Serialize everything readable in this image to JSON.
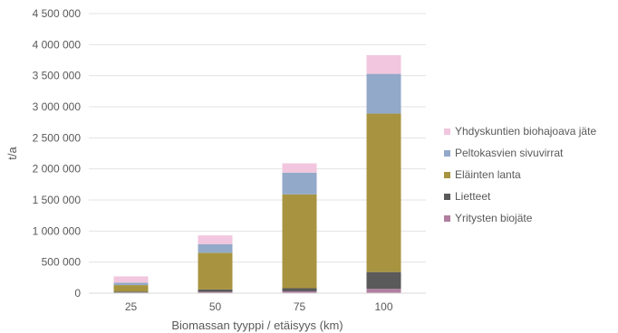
{
  "chart_data": {
    "type": "bar",
    "stacked": true,
    "title": "",
    "xlabel": "Biomassan tyyppi / etäisyys (km)",
    "ylabel": "t/a",
    "ylim": [
      0,
      4500000
    ],
    "yticks": [
      0,
      500000,
      1000000,
      1500000,
      2000000,
      2500000,
      3000000,
      3500000,
      4000000,
      4500000
    ],
    "ytick_labels": [
      "0",
      "500 000",
      "1 000 000",
      "1 500 000",
      "2 000 000",
      "2 500 000",
      "3 000 000",
      "3 500 000",
      "4 000 000",
      "4 500 000"
    ],
    "categories": [
      "25",
      "50",
      "75",
      "100"
    ],
    "grid": true,
    "legend_position": "right",
    "series": [
      {
        "name": "Yritysten biojäte",
        "color": "#b07fa0",
        "values": [
          10000,
          20000,
          30000,
          70000
        ]
      },
      {
        "name": "Lietteet",
        "color": "#5a5a5a",
        "values": [
          15000,
          40000,
          50000,
          270000
        ]
      },
      {
        "name": "Eläinten lanta",
        "color": "#a89440",
        "values": [
          105000,
          590000,
          1510000,
          2550000
        ]
      },
      {
        "name": "Peltokasvien sivuvirrat",
        "color": "#93a9c9",
        "values": [
          40000,
          140000,
          350000,
          640000
        ]
      },
      {
        "name": "Yhdyskuntien biohajoava jäte",
        "color": "#f1c6de",
        "values": [
          100000,
          140000,
          150000,
          300000
        ]
      }
    ]
  }
}
